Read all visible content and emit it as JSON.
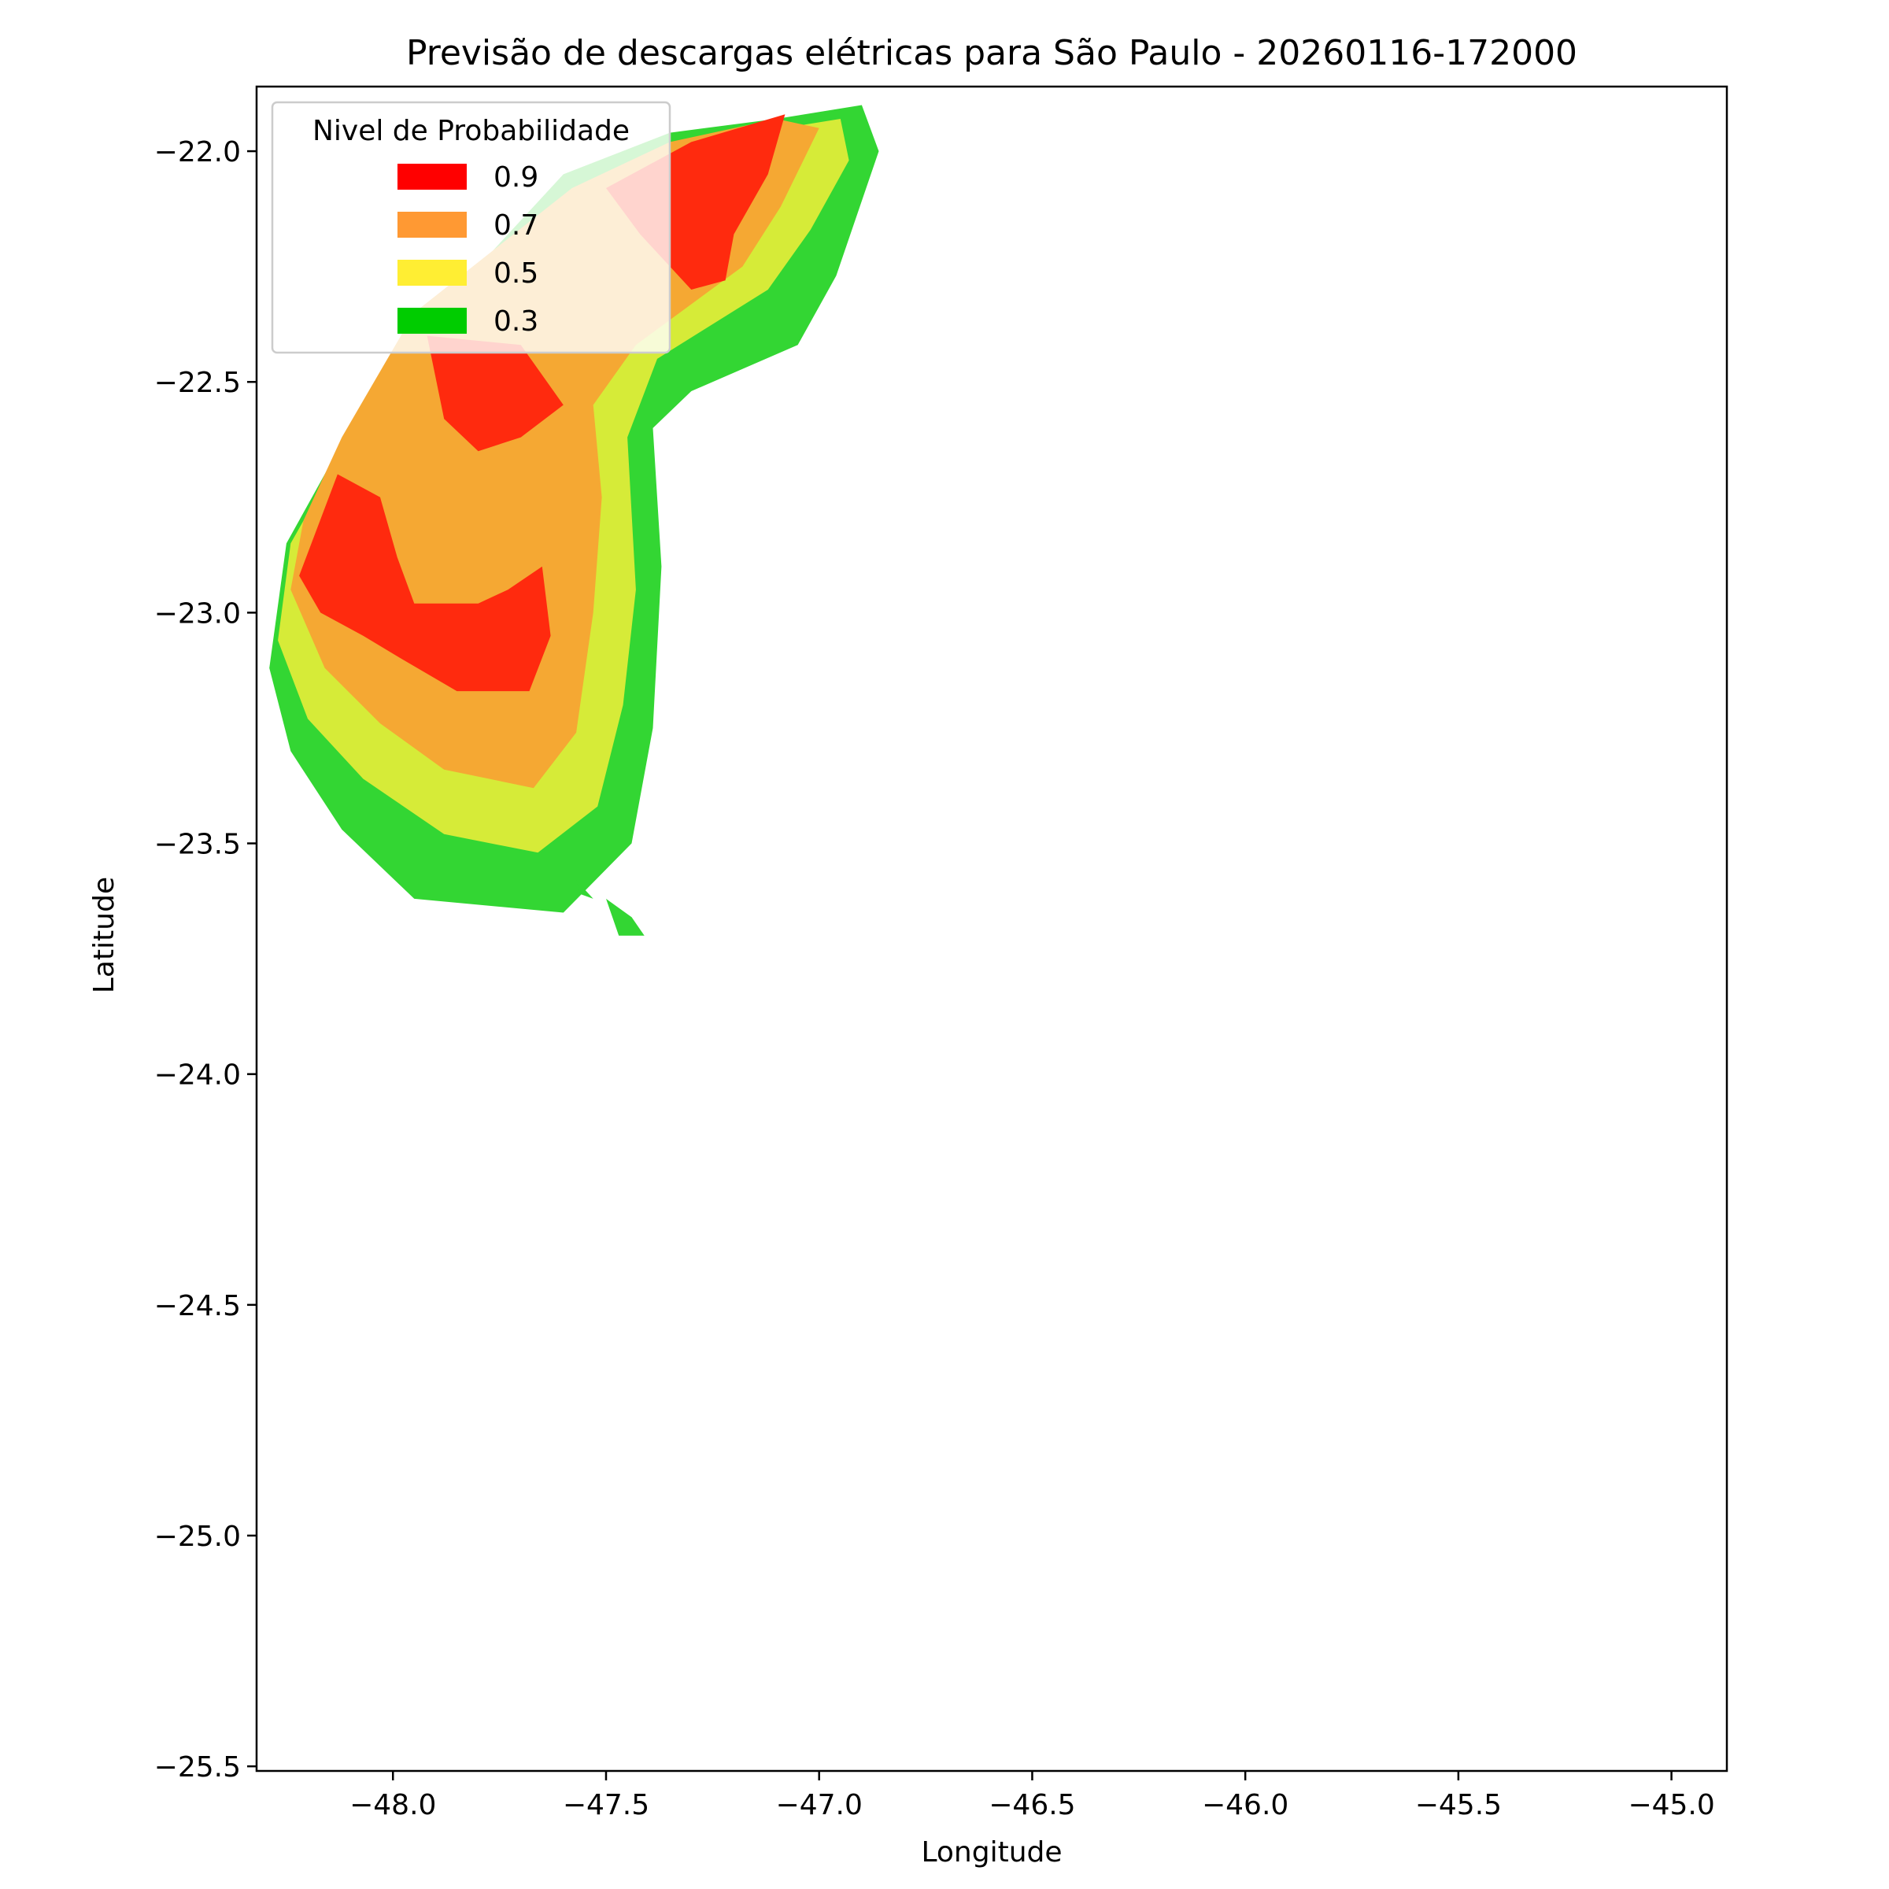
{
  "chart_data": {
    "type": "contour",
    "title": "Previsão de descargas elétricas para São Paulo - 20260116-172000",
    "xlabel": "Longitude",
    "ylabel": "Latitude",
    "xlim": [
      -48.32,
      -44.87
    ],
    "ylim": [
      -25.51,
      -21.86
    ],
    "xticks": [
      -48.0,
      -47.5,
      -47.0,
      -46.5,
      -46.0,
      -45.5,
      -45.0
    ],
    "xtick_labels": [
      "−48.0",
      "−47.5",
      "−47.0",
      "−46.5",
      "−46.0",
      "−45.5",
      "−45.0"
    ],
    "yticks": [
      -22.0,
      -22.5,
      -23.0,
      -23.5,
      -24.0,
      -24.5,
      -25.0,
      -25.5
    ],
    "ytick_labels": [
      "−22.0",
      "−22.5",
      "−23.0",
      "−23.5",
      "−24.0",
      "−24.5",
      "−25.0",
      "−25.5"
    ],
    "grid": false,
    "legend": {
      "title": "Nivel de Probabilidade",
      "placement": "top-left",
      "entries": [
        {
          "label": "0.9",
          "color": "#ff0000"
        },
        {
          "label": "0.7",
          "color": "#ff9933"
        },
        {
          "label": "0.5",
          "color": "#ffee33"
        },
        {
          "label": "0.3",
          "color": "#00cc00"
        }
      ]
    },
    "regions": [
      {
        "name": "0.3",
        "color": "#33d633",
        "polygons": [
          [
            [
              -48.29,
              -23.12
            ],
            [
              -48.24,
              -23.3
            ],
            [
              -48.12,
              -23.47
            ],
            [
              -47.95,
              -23.62
            ],
            [
              -47.6,
              -23.65
            ],
            [
              -47.44,
              -23.5
            ],
            [
              -47.39,
              -23.25
            ],
            [
              -47.37,
              -22.9
            ],
            [
              -47.39,
              -22.6
            ],
            [
              -47.3,
              -22.52
            ],
            [
              -47.05,
              -22.42
            ],
            [
              -46.96,
              -22.27
            ],
            [
              -46.86,
              -22.0
            ],
            [
              -46.9,
              -21.9
            ],
            [
              -47.1,
              -21.93
            ],
            [
              -47.35,
              -21.96
            ],
            [
              -47.6,
              -22.05
            ],
            [
              -47.9,
              -22.35
            ],
            [
              -48.1,
              -22.6
            ],
            [
              -48.25,
              -22.85
            ]
          ],
          [
            [
              -47.57,
              -23.58
            ],
            [
              -47.53,
              -23.62
            ],
            [
              -47.56,
              -23.61
            ]
          ],
          [
            [
              -47.5,
              -23.62
            ],
            [
              -47.44,
              -23.66
            ],
            [
              -47.41,
              -23.7
            ],
            [
              -47.47,
              -23.7
            ]
          ]
        ]
      },
      {
        "name": "0.5",
        "color": "#d6eb38",
        "polygons": [
          [
            [
              -48.27,
              -23.06
            ],
            [
              -48.2,
              -23.23
            ],
            [
              -48.07,
              -23.36
            ],
            [
              -47.88,
              -23.48
            ],
            [
              -47.66,
              -23.52
            ],
            [
              -47.52,
              -23.42
            ],
            [
              -47.46,
              -23.2
            ],
            [
              -47.43,
              -22.95
            ],
            [
              -47.45,
              -22.62
            ],
            [
              -47.38,
              -22.45
            ],
            [
              -47.12,
              -22.3
            ],
            [
              -47.02,
              -22.17
            ],
            [
              -46.93,
              -22.02
            ],
            [
              -46.95,
              -21.93
            ],
            [
              -47.15,
              -21.96
            ],
            [
              -47.4,
              -22.02
            ],
            [
              -47.62,
              -22.12
            ],
            [
              -47.92,
              -22.4
            ],
            [
              -48.1,
              -22.62
            ],
            [
              -48.24,
              -22.85
            ]
          ]
        ]
      },
      {
        "name": "0.7",
        "color": "#f5a833",
        "polygons": [
          [
            [
              -48.24,
              -22.95
            ],
            [
              -48.16,
              -23.12
            ],
            [
              -48.03,
              -23.24
            ],
            [
              -47.88,
              -23.34
            ],
            [
              -47.67,
              -23.38
            ],
            [
              -47.57,
              -23.26
            ],
            [
              -47.53,
              -23.0
            ],
            [
              -47.51,
              -22.75
            ],
            [
              -47.53,
              -22.55
            ],
            [
              -47.43,
              -22.42
            ],
            [
              -47.18,
              -22.25
            ],
            [
              -47.09,
              -22.12
            ],
            [
              -47.0,
              -21.95
            ],
            [
              -47.1,
              -21.93
            ],
            [
              -47.35,
              -21.98
            ],
            [
              -47.58,
              -22.08
            ],
            [
              -47.95,
              -22.35
            ],
            [
              -48.12,
              -22.62
            ],
            [
              -48.21,
              -22.8
            ]
          ]
        ]
      },
      {
        "name": "0.9",
        "color": "#ff2a0e",
        "polygons": [
          [
            [
              -48.22,
              -22.92
            ],
            [
              -48.17,
              -23.0
            ],
            [
              -48.07,
              -23.05
            ],
            [
              -47.98,
              -23.1
            ],
            [
              -47.85,
              -23.17
            ],
            [
              -47.68,
              -23.17
            ],
            [
              -47.63,
              -23.05
            ],
            [
              -47.65,
              -22.9
            ],
            [
              -47.73,
              -22.95
            ],
            [
              -47.8,
              -22.98
            ],
            [
              -47.95,
              -22.98
            ],
            [
              -47.99,
              -22.88
            ],
            [
              -48.03,
              -22.75
            ],
            [
              -48.13,
              -22.7
            ]
          ],
          [
            [
              -47.92,
              -22.4
            ],
            [
              -47.88,
              -22.58
            ],
            [
              -47.8,
              -22.65
            ],
            [
              -47.7,
              -22.62
            ],
            [
              -47.6,
              -22.55
            ],
            [
              -47.7,
              -22.42
            ]
          ],
          [
            [
              -47.5,
              -22.08
            ],
            [
              -47.42,
              -22.18
            ],
            [
              -47.3,
              -22.3
            ],
            [
              -47.22,
              -22.28
            ],
            [
              -47.2,
              -22.18
            ],
            [
              -47.12,
              -22.05
            ],
            [
              -47.08,
              -21.92
            ],
            [
              -47.3,
              -21.98
            ]
          ]
        ]
      }
    ]
  }
}
